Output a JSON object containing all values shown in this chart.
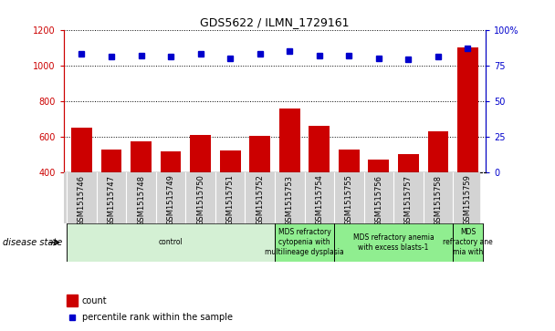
{
  "title": "GDS5622 / ILMN_1729161",
  "samples": [
    "GSM1515746",
    "GSM1515747",
    "GSM1515748",
    "GSM1515749",
    "GSM1515750",
    "GSM1515751",
    "GSM1515752",
    "GSM1515753",
    "GSM1515754",
    "GSM1515755",
    "GSM1515756",
    "GSM1515757",
    "GSM1515758",
    "GSM1515759"
  ],
  "counts": [
    650,
    525,
    575,
    515,
    610,
    520,
    605,
    755,
    660,
    525,
    470,
    500,
    630,
    1100
  ],
  "percentile_ranks": [
    83,
    81,
    82,
    81,
    83,
    80,
    83,
    85,
    82,
    82,
    80,
    79,
    81,
    87
  ],
  "ylim_left": [
    400,
    1200
  ],
  "ylim_right": [
    0,
    100
  ],
  "yticks_left": [
    400,
    600,
    800,
    1000,
    1200
  ],
  "yticks_right": [
    0,
    25,
    50,
    75,
    100
  ],
  "bar_color": "#cc0000",
  "dot_color": "#0000cc",
  "disease_groups": [
    {
      "label": "control",
      "start": 0,
      "end": 7,
      "color": "#d4f0d4"
    },
    {
      "label": "MDS refractory\ncytopenia with\nmultilineage dysplasia",
      "start": 7,
      "end": 9,
      "color": "#90ee90"
    },
    {
      "label": "MDS refractory anemia\nwith excess blasts-1",
      "start": 9,
      "end": 13,
      "color": "#90ee90"
    },
    {
      "label": "MDS\nrefractory ane\nmia with",
      "start": 13,
      "end": 14,
      "color": "#90ee90"
    }
  ],
  "legend_count": "count",
  "legend_pct": "percentile rank within the sample",
  "disease_state_label": "disease state"
}
